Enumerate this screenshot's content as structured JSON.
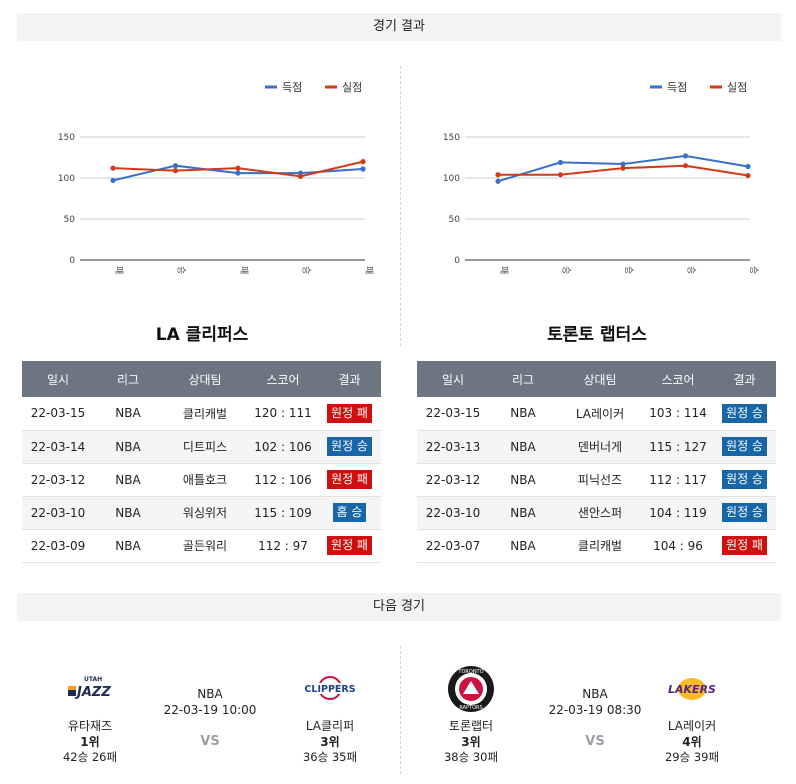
{
  "results_section_title": "경기 결과",
  "next_section_title": "다음 경기",
  "legend": {
    "scored": "득점",
    "conceded": "실점",
    "scored_color": "#3a6fc9",
    "conceded_color": "#d33a17"
  },
  "chart_data": [
    {
      "type": "line",
      "team": "LA 클리퍼스",
      "categories": [
        "패",
        "승",
        "패",
        "승",
        "패"
      ],
      "ylim": [
        0,
        150
      ],
      "yticks": [
        0,
        50,
        100,
        150
      ],
      "grid": true,
      "legend_position": "top-right",
      "series": [
        {
          "name": "득점",
          "color": "#3a6fc9",
          "values": [
            97,
            115,
            106,
            106,
            111
          ]
        },
        {
          "name": "실점",
          "color": "#d33a17",
          "values": [
            112,
            109,
            112,
            102,
            120
          ]
        }
      ]
    },
    {
      "type": "line",
      "team": "토론토 랩터스",
      "categories": [
        "패",
        "승",
        "승",
        "승",
        "승"
      ],
      "ylim": [
        0,
        150
      ],
      "yticks": [
        0,
        50,
        100,
        150
      ],
      "grid": true,
      "legend_position": "top-right",
      "series": [
        {
          "name": "득점",
          "color": "#3a6fc9",
          "values": [
            96,
            119,
            117,
            127,
            114
          ]
        },
        {
          "name": "실점",
          "color": "#d33a17",
          "values": [
            104,
            104,
            112,
            115,
            103
          ]
        }
      ]
    }
  ],
  "table_headers": [
    "일시",
    "리그",
    "상대팀",
    "스코어",
    "결과"
  ],
  "left_team": {
    "title": "LA 클리퍼스",
    "rows": [
      {
        "date": "22-03-15",
        "league": "NBA",
        "opponent": "클리캐벌",
        "score": "120 : 111",
        "result": "원정 패",
        "type": "loss"
      },
      {
        "date": "22-03-14",
        "league": "NBA",
        "opponent": "디트피스",
        "score": "102 : 106",
        "result": "원정 승",
        "type": "win"
      },
      {
        "date": "22-03-12",
        "league": "NBA",
        "opponent": "애틀호크",
        "score": "112 : 106",
        "result": "원정 패",
        "type": "loss"
      },
      {
        "date": "22-03-10",
        "league": "NBA",
        "opponent": "워싱위저",
        "score": "115 : 109",
        "result": "홈 승",
        "type": "win"
      },
      {
        "date": "22-03-09",
        "league": "NBA",
        "opponent": "골든워리",
        "score": "112 : 97",
        "result": "원정 패",
        "type": "loss"
      }
    ]
  },
  "right_team": {
    "title": "토론토 랩터스",
    "rows": [
      {
        "date": "22-03-15",
        "league": "NBA",
        "opponent": "LA레이커",
        "score": "103 : 114",
        "result": "원정 승",
        "type": "win"
      },
      {
        "date": "22-03-13",
        "league": "NBA",
        "opponent": "덴버너게",
        "score": "115 : 127",
        "result": "원정 승",
        "type": "win"
      },
      {
        "date": "22-03-12",
        "league": "NBA",
        "opponent": "피닉선즈",
        "score": "112 : 117",
        "result": "원정 승",
        "type": "win"
      },
      {
        "date": "22-03-10",
        "league": "NBA",
        "opponent": "샌안스퍼",
        "score": "104 : 119",
        "result": "원정 승",
        "type": "win"
      },
      {
        "date": "22-03-07",
        "league": "NBA",
        "opponent": "클리캐벌",
        "score": "104 : 96",
        "result": "원정 패",
        "type": "loss"
      }
    ]
  },
  "next_games": [
    {
      "league": "NBA",
      "datetime": "22-03-19 10:00",
      "vs": "VS",
      "home": {
        "name": "유타재즈",
        "rank": "1위",
        "record": "42승 26패",
        "logo": "utah-jazz-logo",
        "logo_text": "JAZZ"
      },
      "away": {
        "name": "LA클리퍼",
        "rank": "3위",
        "record": "36승 35패",
        "logo": "la-clippers-logo",
        "logo_text": "CLIPPERS"
      }
    },
    {
      "league": "NBA",
      "datetime": "22-03-19 08:30",
      "vs": "VS",
      "home": {
        "name": "토론랩터",
        "rank": "3위",
        "record": "38승 30패",
        "logo": "toronto-raptors-logo",
        "logo_text": "RAPTORS"
      },
      "away": {
        "name": "LA레이커",
        "rank": "4위",
        "record": "29승 39패",
        "logo": "la-lakers-logo",
        "logo_text": "LAKERS"
      }
    }
  ]
}
